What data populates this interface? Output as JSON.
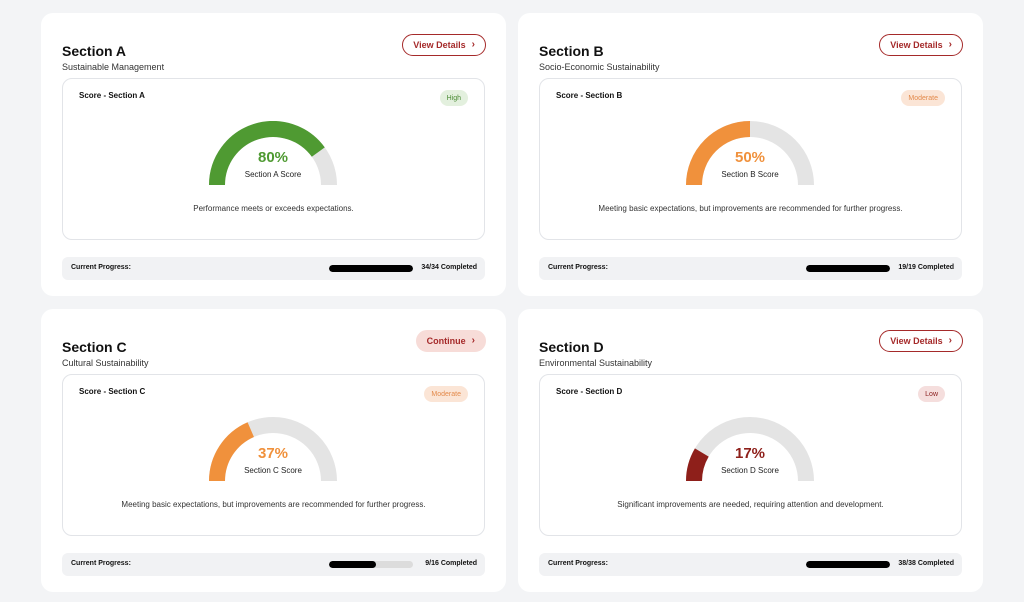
{
  "cards": [
    {
      "title": "Section A",
      "subtitle": "Sustainable Management",
      "action_label": "View Details",
      "action_type": "outline",
      "score_label": "Score - Section A",
      "level": "High",
      "level_class": "high",
      "percent": 80,
      "percent_text": "80%",
      "gauge_caption": "Section A Score",
      "gauge_color": "#4f9a32",
      "description": "Performance meets or exceeds expectations.",
      "progress_label": "Current Progress:",
      "progress_fraction": 1.0,
      "progress_text": "34/34 Completed"
    },
    {
      "title": "Section B",
      "subtitle": "Socio-Economic Sustainability",
      "action_label": "View Details",
      "action_type": "outline",
      "score_label": "Score - Section B",
      "level": "Moderate",
      "level_class": "moderate",
      "percent": 50,
      "percent_text": "50%",
      "gauge_caption": "Section B Score",
      "gauge_color": "#f0913c",
      "description": "Meeting basic expectations, but improvements are recommended for further progress.",
      "progress_label": "Current Progress:",
      "progress_fraction": 1.0,
      "progress_text": "19/19 Completed"
    },
    {
      "title": "Section C",
      "subtitle": "Cultural Sustainability",
      "action_label": "Continue",
      "action_type": "continue",
      "score_label": "Score - Section C",
      "level": "Moderate",
      "level_class": "moderate",
      "percent": 37,
      "percent_text": "37%",
      "gauge_caption": "Section C Score",
      "gauge_color": "#f0913c",
      "description": "Meeting basic expectations, but improvements are recommended for further progress.",
      "progress_label": "Current Progress:",
      "progress_fraction": 0.5625,
      "progress_text": "9/16 Completed"
    },
    {
      "title": "Section D",
      "subtitle": "Environmental Sustainability",
      "action_label": "View Details",
      "action_type": "outline",
      "score_label": "Score - Section D",
      "level": "Low",
      "level_class": "low",
      "percent": 17,
      "percent_text": "17%",
      "gauge_caption": "Section D Score",
      "gauge_color": "#8e1f1a",
      "description": "Significant improvements are needed, requiring attention and development.",
      "progress_label": "Current Progress:",
      "progress_fraction": 1.0,
      "progress_text": "38/38 Completed"
    }
  ],
  "icons": {
    "action_chevron": "chevron-right-icon"
  },
  "colors": {
    "gauge_track": "#e4e4e4",
    "accent": "#a52a2a"
  }
}
